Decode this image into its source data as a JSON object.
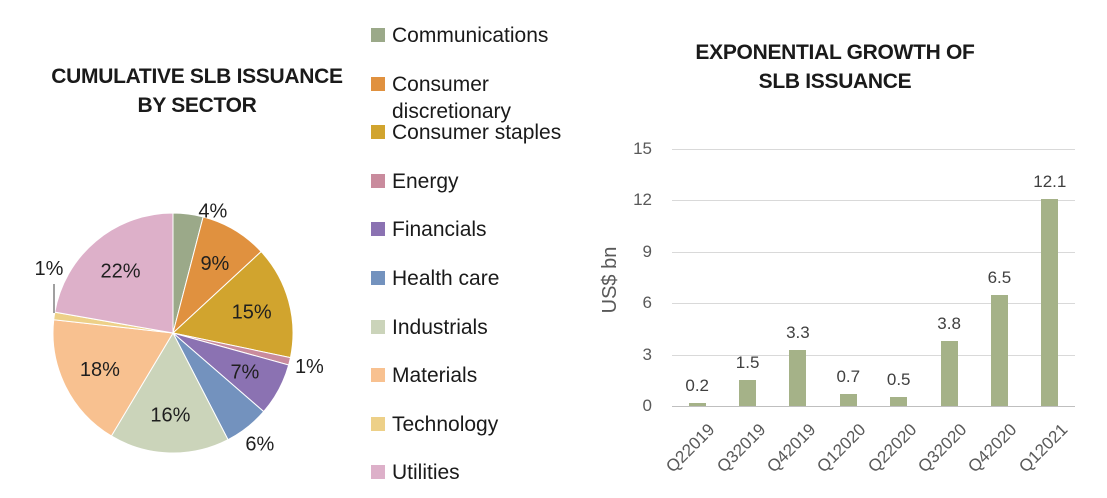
{
  "page": {
    "background": "#FFFFFF"
  },
  "chart_data": [
    {
      "type": "pie",
      "title": "CUMULATIVE SLB ISSUANCE BY SECTOR",
      "title_lines": [
        "CUMULATIVE SLB ISSUANCE",
        "BY SECTOR"
      ],
      "legend_position": "right",
      "labels": [
        "Communications",
        "Consumer discretionary",
        "Consumer staples",
        "Energy",
        "Financials",
        "Health care",
        "Industrials",
        "Materials",
        "Technology",
        "Utilities"
      ],
      "values_pct": [
        4,
        9,
        15,
        1,
        7,
        6,
        16,
        18,
        1,
        22
      ],
      "value_labels": [
        "4%",
        "9%",
        "15%",
        "1%",
        "7%",
        "6%",
        "16%",
        "18%",
        "1%",
        "22%"
      ],
      "colors": [
        "#9BA989",
        "#E0913F",
        "#D1A42E",
        "#C98B9D",
        "#8B72B2",
        "#7392BE",
        "#CBD4BA",
        "#F8C190",
        "#EDD088",
        "#DDB0C9"
      ],
      "label_color": "#1f1f1f",
      "title_color": "#1a1a1a"
    },
    {
      "type": "bar",
      "title": "EXPONENTIAL GROWTH OF SLB ISSUANCE",
      "title_lines": [
        "EXPONENTIAL GROWTH OF",
        "SLB ISSUANCE"
      ],
      "ylabel": "US$ bn",
      "categories": [
        "Q22019",
        "Q32019",
        "Q42019",
        "Q12020",
        "Q22020",
        "Q32020",
        "Q42020",
        "Q12021"
      ],
      "values": [
        0.2,
        1.5,
        3.3,
        0.7,
        0.5,
        3.8,
        6.5,
        12.1
      ],
      "value_labels": [
        "0.2",
        "1.5",
        "3.3",
        "0.7",
        "0.5",
        "3.8",
        "6.5",
        "12.1"
      ],
      "ylim": [
        0,
        15
      ],
      "yticks": [
        0,
        3,
        6,
        9,
        12,
        15
      ],
      "grid": true,
      "bar_color": "#A5B288",
      "gridline_color": "#D9D9D9",
      "axis_line_color": "#BFBFBF",
      "axis_text_color": "#595959",
      "data_label_color": "#404040"
    }
  ]
}
